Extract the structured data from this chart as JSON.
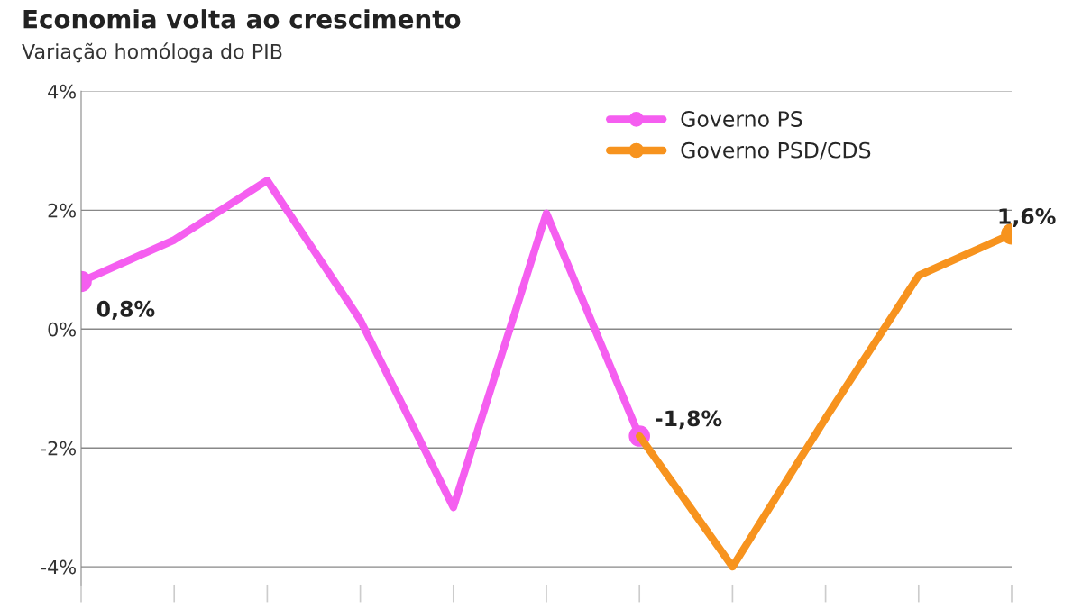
{
  "chart_data": {
    "type": "line",
    "title": "Economia volta ao crescimento",
    "subtitle": "Variação homóloga do PIB",
    "categories": [
      null,
      null,
      null,
      null,
      null,
      null,
      null,
      null,
      null,
      null,
      null
    ],
    "series": [
      {
        "name": "Governo PS",
        "color": "#f55ef0",
        "values": [
          0.8,
          1.5,
          2.5,
          0.15,
          -3.0,
          1.95,
          -1.8,
          null,
          null,
          null,
          null
        ],
        "value_labels": [
          "0,8%",
          null,
          null,
          null,
          null,
          null,
          "-1,8%",
          null,
          null,
          null,
          null
        ]
      },
      {
        "name": "Governo PSD/CDS",
        "color": "#f7931e",
        "values": [
          null,
          null,
          null,
          null,
          null,
          null,
          -1.8,
          -4.0,
          -1.5,
          0.9,
          1.6
        ],
        "value_labels": [
          null,
          null,
          null,
          null,
          null,
          null,
          null,
          null,
          null,
          null,
          "1,6%"
        ]
      }
    ],
    "ylim": [
      -4.3,
      4
    ],
    "yticks": [
      {
        "value": -4,
        "label": "-4%"
      },
      {
        "value": -2,
        "label": "-2%"
      },
      {
        "value": 0,
        "label": "0%"
      },
      {
        "value": 2,
        "label": "2%"
      },
      {
        "value": 4,
        "label": "4%"
      }
    ],
    "grid": "y",
    "legend": "top right",
    "line_style": "solid"
  }
}
